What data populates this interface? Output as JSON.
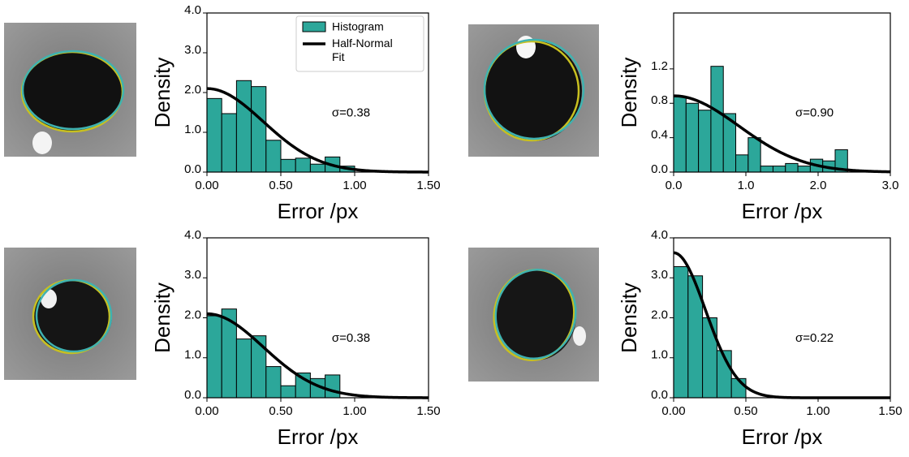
{
  "chart_data": [
    {
      "type": "histogram",
      "xlabel": "Error /px",
      "ylabel": "Density",
      "color": "#2ca79a",
      "hist_name": "Histogram",
      "legend": "upper right",
      "bins": [
        0,
        0.1,
        0.2,
        0.3,
        0.4,
        0.5,
        0.6,
        0.7,
        0.8,
        0.9,
        1.0
      ],
      "counts": [
        1.85,
        1.47,
        2.3,
        2.15,
        0.8,
        0.32,
        0.35,
        0.2,
        0.38,
        0.15
      ],
      "fit": {
        "name": "Half-Normal Fit",
        "sigma": 0.38,
        "label": "σ=0.38",
        "color": "#000000"
      },
      "xlim": [
        0,
        1.5
      ],
      "xticks": [
        {
          "value": 0,
          "label": "0.00"
        },
        {
          "value": 0.5,
          "label": "0.50"
        },
        {
          "value": 1,
          "label": "1.00"
        },
        {
          "value": 1.5,
          "label": "1.50"
        }
      ],
      "ylim": [
        0,
        4
      ],
      "yticks": [
        {
          "value": 0,
          "label": "0.0"
        },
        {
          "value": 1,
          "label": "1.0"
        },
        {
          "value": 2,
          "label": "2.0"
        },
        {
          "value": 3,
          "label": "3.0"
        },
        {
          "value": 4,
          "label": "4.0"
        }
      ]
    },
    {
      "type": "histogram",
      "xlabel": "Error /px",
      "ylabel": "Density",
      "color": "#2ca79a",
      "bins": [
        0,
        0.172,
        0.344,
        0.516,
        0.688,
        0.86,
        1.032,
        1.204,
        1.376,
        1.548,
        1.72,
        1.892,
        2.064,
        2.236,
        2.408
      ],
      "counts": [
        0.88,
        0.8,
        0.72,
        1.23,
        0.68,
        0.2,
        0.4,
        0.07,
        0.07,
        0.1,
        0.07,
        0.15,
        0.13,
        0.26
      ],
      "fit": {
        "sigma": 0.9,
        "label": "σ=0.90",
        "color": "#000000"
      },
      "xlim": [
        0,
        3
      ],
      "xticks": [
        {
          "value": 0,
          "label": "0.0"
        },
        {
          "value": 1,
          "label": "1.0"
        },
        {
          "value": 2,
          "label": "2.0"
        },
        {
          "value": 3,
          "label": "3.0"
        }
      ],
      "ylim": [
        0,
        1.85
      ],
      "yticks": [
        {
          "value": 0,
          "label": "0.0"
        },
        0.4,
        0.8,
        1.2
      ]
    },
    {
      "type": "histogram",
      "xlabel": "Error /px",
      "ylabel": "Density",
      "color": "#2ca79a",
      "bins": [
        0,
        0.1,
        0.2,
        0.3,
        0.4,
        0.5,
        0.6,
        0.7,
        0.8,
        0.9
      ],
      "counts": [
        2.05,
        2.22,
        1.47,
        1.55,
        0.78,
        0.3,
        0.62,
        0.48,
        0.57
      ],
      "fit": {
        "sigma": 0.38,
        "label": "σ=0.38",
        "color": "#000000"
      },
      "xlim": [
        0,
        1.5
      ],
      "xticks": [
        {
          "value": 0,
          "label": "0.00"
        },
        {
          "value": 0.5,
          "label": "0.50"
        },
        {
          "value": 1,
          "label": "1.00"
        },
        {
          "value": 1.5,
          "label": "1.50"
        }
      ],
      "ylim": [
        0,
        4
      ],
      "yticks": [
        {
          "value": 0,
          "label": "0.0"
        },
        {
          "value": 1,
          "label": "1.0"
        },
        {
          "value": 2,
          "label": "2.0"
        },
        {
          "value": 3,
          "label": "3.0"
        },
        {
          "value": 4,
          "label": "4.0"
        }
      ]
    },
    {
      "type": "histogram",
      "xlabel": "Error /px",
      "ylabel": "Density",
      "color": "#2ca79a",
      "bins": [
        0,
        0.1,
        0.2,
        0.3,
        0.4,
        0.5
      ],
      "counts": [
        3.28,
        3.05,
        2.0,
        1.18,
        0.48
      ],
      "fit": {
        "sigma": 0.22,
        "label": "σ=0.22",
        "color": "#000000"
      },
      "xlim": [
        0,
        1.5
      ],
      "xticks": [
        {
          "value": 0,
          "label": "0.00"
        },
        {
          "value": 0.5,
          "label": "0.50"
        },
        {
          "value": 1,
          "label": "1.00"
        },
        {
          "value": 1.5,
          "label": "1.50"
        }
      ],
      "ylim": [
        0,
        4
      ],
      "yticks": [
        {
          "value": 0,
          "label": "0.0"
        },
        {
          "value": 1,
          "label": "1.0"
        },
        {
          "value": 2,
          "label": "2.0"
        },
        {
          "value": 3,
          "label": "3.0"
        },
        {
          "value": 4,
          "label": "4.0"
        }
      ]
    }
  ]
}
